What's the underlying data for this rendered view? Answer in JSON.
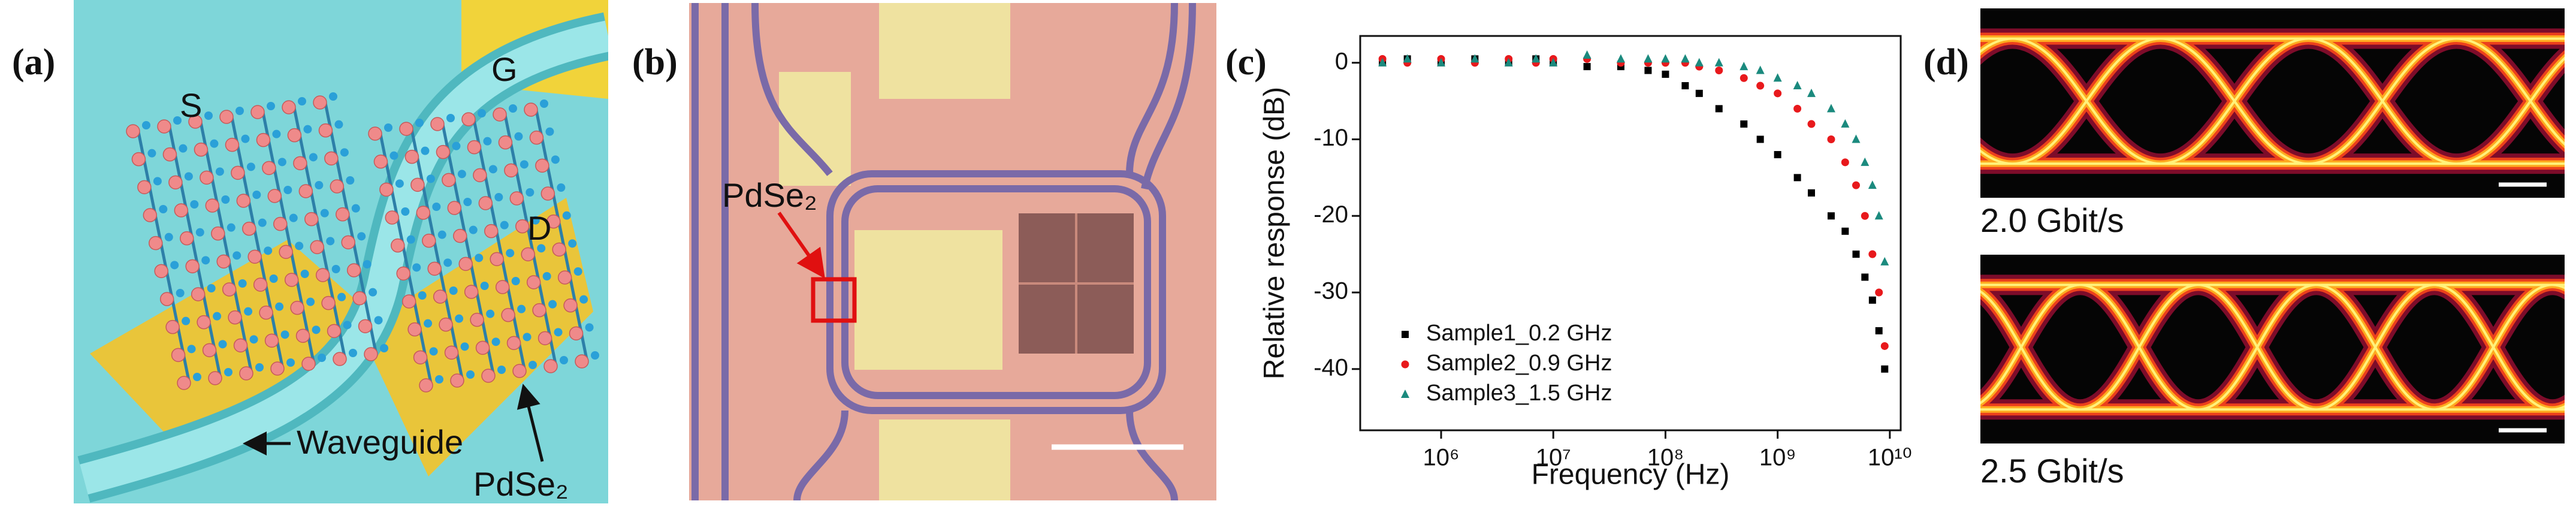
{
  "panel_labels": [
    "(a)",
    "(b)",
    "(c)",
    "(d)"
  ],
  "panel_a": {
    "source": "S",
    "gate": "G",
    "drain": "D",
    "waveguide": "Waveguide",
    "material": "PdSe₂"
  },
  "panel_b": {
    "material": "PdSe₂"
  },
  "chart_data": {
    "type": "scatter",
    "x_label": "Frequency (Hz)",
    "y_label": "Relative response (dB)",
    "xscale": "log",
    "xlim": [
      190000,
      12500000000
    ],
    "xticks": [
      {
        "value": 1000000,
        "label": "10⁶"
      },
      {
        "value": 10000000,
        "label": "10⁷"
      },
      {
        "value": 100000000,
        "label": "10⁸"
      },
      {
        "value": 1000000000,
        "label": "10⁹"
      },
      {
        "value": 10000000000,
        "label": "10¹⁰"
      }
    ],
    "ylim": [
      -48,
      3.5
    ],
    "yticks": [
      0,
      -10,
      -20,
      -30,
      -40
    ],
    "legend": "lower left",
    "x": [
      300000,
      500000,
      1000000,
      2000000,
      4000000,
      7000000,
      10000000,
      20000000,
      40000000,
      70000000,
      100000000,
      150000000,
      200000000,
      300000000,
      500000000,
      700000000,
      1000000000,
      1500000000,
      2000000000,
      3000000000,
      4000000000,
      5000000000,
      6000000000,
      7000000000,
      8000000000,
      9000000000
    ],
    "series": [
      {
        "name": "Sample1_0.2 GHz",
        "color": "#000000",
        "marker": "square",
        "values": [
          0,
          0.5,
          0,
          0.5,
          0,
          0.5,
          0,
          -0.5,
          -0.5,
          -1,
          -1.5,
          -3,
          -4,
          -6,
          -8,
          -10,
          -12,
          -15,
          -17,
          -20,
          -22,
          -25,
          -28,
          -31,
          -35,
          -40
        ]
      },
      {
        "name": "Sample2_0.9 GHz",
        "color": "#e8191c",
        "marker": "circle",
        "values": [
          0.5,
          0,
          0.5,
          0,
          0.5,
          0,
          0.5,
          0.5,
          0,
          0,
          0,
          0,
          -0.5,
          -1,
          -2,
          -3,
          -4,
          -6,
          -8,
          -10,
          -13,
          -16,
          -20,
          -25,
          -30,
          -37
        ]
      },
      {
        "name": "Sample3_1.5 GHz",
        "color": "#1b8a7e",
        "marker": "triangle",
        "values": [
          0,
          0.5,
          0,
          0.5,
          0,
          0.5,
          0,
          1,
          0.5,
          0.5,
          0.5,
          0.5,
          0,
          0,
          -0.5,
          -1,
          -2,
          -3,
          -4,
          -6,
          -8,
          -10,
          -13,
          -16,
          -20,
          -26
        ]
      }
    ]
  },
  "panel_d": {
    "eye_labels": [
      "2.0 Gbit/s",
      "2.5 Gbit/s"
    ]
  }
}
